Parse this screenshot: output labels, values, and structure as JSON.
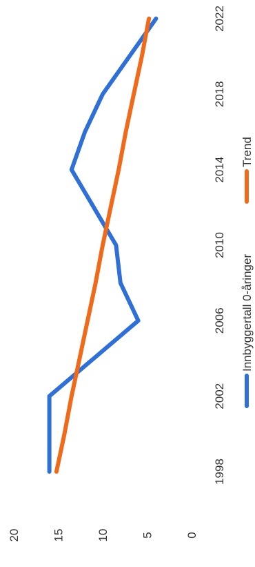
{
  "chart_data": {
    "type": "line",
    "orientation": "rotated-90-clockwise",
    "x": [
      1998,
      2000,
      2002,
      2004,
      2006,
      2008,
      2010,
      2012,
      2014,
      2016,
      2018,
      2020,
      2022
    ],
    "x_ticks": [
      "1998",
      "2002",
      "2006",
      "2010",
      "2014",
      "2018",
      "2022"
    ],
    "y_ticks": [
      "0",
      "5",
      "10",
      "15",
      "20"
    ],
    "ylim": [
      0,
      20
    ],
    "grid": false,
    "legend_position": "right",
    "series": [
      {
        "name": "Innbyggertall 0-åringer",
        "color": "#2f6fd6",
        "values": [
          16,
          16,
          16,
          11,
          6,
          8,
          8.5,
          11,
          13.5,
          12,
          10,
          7,
          4
        ]
      },
      {
        "name": "Trend",
        "color": "#f06a1c",
        "values": [
          15.2,
          14.3,
          13.5,
          12.6,
          11.7,
          10.8,
          10.0,
          9.1,
          8.2,
          7.4,
          6.5,
          5.6,
          4.8
        ]
      }
    ]
  }
}
